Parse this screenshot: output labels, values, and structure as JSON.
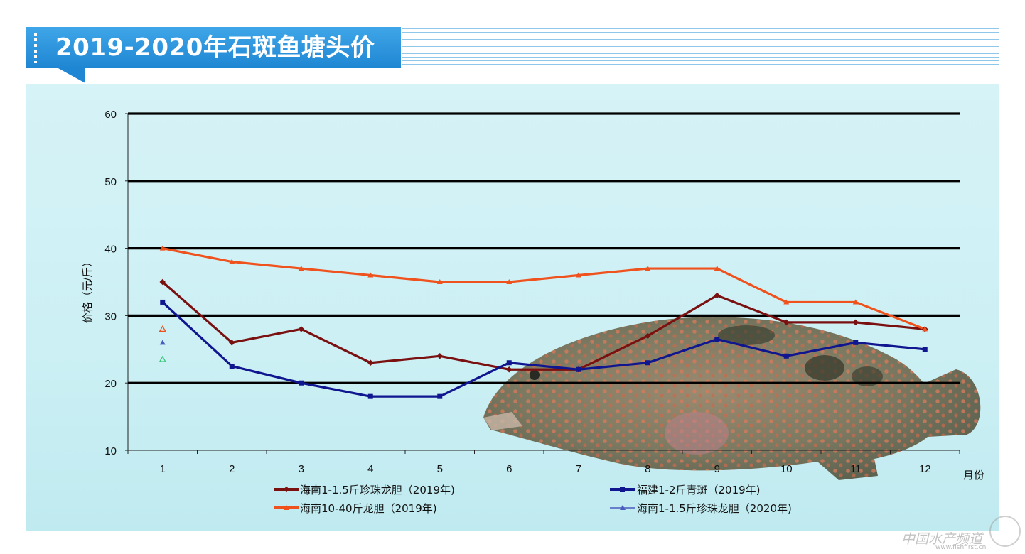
{
  "header": {
    "title": "2019-2020年石斑鱼塘头价"
  },
  "chart_data": {
    "type": "line",
    "ylabel": "价格（元/斤）",
    "xlabel": "月份",
    "categories": [
      "1",
      "2",
      "3",
      "4",
      "5",
      "6",
      "7",
      "8",
      "9",
      "10",
      "11",
      "12"
    ],
    "ylim": [
      10,
      60
    ],
    "yticks": [
      10,
      20,
      30,
      40,
      50,
      60
    ],
    "grid": true,
    "legend_position": "bottom",
    "series": [
      {
        "name": "海南1-1.5斤珍珠龙胆（2019年)",
        "color": "#7a1010",
        "marker": "diamond",
        "values": [
          35,
          26,
          28,
          23,
          24,
          22,
          22,
          27,
          33,
          29,
          29,
          28
        ]
      },
      {
        "name": "福建1-2斤青斑（2019年)",
        "color": "#10168f",
        "marker": "square",
        "values": [
          32,
          22.5,
          20,
          18,
          18,
          23,
          22,
          23,
          26.5,
          24,
          26,
          25
        ]
      },
      {
        "name": "海南10-40斤龙胆（2019年)",
        "color": "#f0521e",
        "marker": "triangle",
        "values": [
          40,
          38,
          37,
          36,
          35,
          35,
          36,
          37,
          37,
          32,
          32,
          28
        ]
      },
      {
        "name": "海南1-1.5斤珍珠龙胆（2020年)",
        "color": "#4a5dbf",
        "marker": "triangle",
        "values": [
          26,
          null,
          null,
          null,
          null,
          null,
          null,
          null,
          null,
          null,
          null,
          null
        ]
      }
    ],
    "extra_points": [
      {
        "x": "1",
        "y": 28,
        "color": "#f0521e"
      },
      {
        "x": "1",
        "y": 23.5,
        "color": "#3cc87a"
      }
    ]
  },
  "watermark": {
    "text": "中国水产频道",
    "url": "www.fishfirst.cn"
  }
}
